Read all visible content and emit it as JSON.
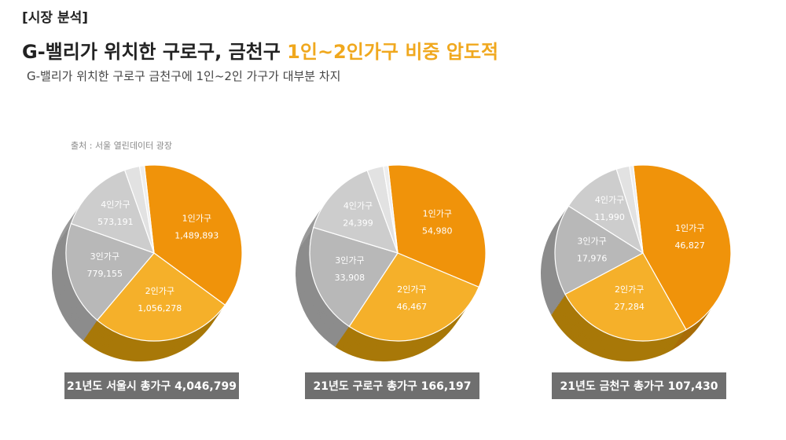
{
  "header": {
    "tag": "[시장 분석]",
    "title_main": "G-밸리가 위치한 구로구, 금천구 ",
    "title_highlight": "1인~2인가구 비중 압도적",
    "subtitle": "G-밸리가 위치한 구로구 금천구에 1인~2인 가구가 대부분 차지",
    "source": "출처 : 서울 열린데이터 광장"
  },
  "colors": {
    "one_person": "#f0930a",
    "two_person": "#f5b02a",
    "three_person": "#b8b8b8",
    "four_person": "#cdcdcd",
    "others_a": "#e2e2e2",
    "others_b": "#eeeeee",
    "highlight": "#f0a81e",
    "total_box": "#6f6f6f"
  },
  "chart_data": [
    {
      "type": "pie",
      "region": "서울시",
      "total_label": "21년도 서울시 총가구 4,046,799",
      "total": 4046799,
      "slices": [
        {
          "label": "1인가구",
          "value": 1489893,
          "value_label": "1,489,893"
        },
        {
          "label": "2인가구",
          "value": 1056278,
          "value_label": "1,056,278"
        },
        {
          "label": "3인가구",
          "value": 779155,
          "value_label": "779,155"
        },
        {
          "label": "4인가구",
          "value": 573191,
          "value_label": "573,191"
        },
        {
          "label": "",
          "value": 112000,
          "value_label": ""
        },
        {
          "label": "",
          "value": 36282,
          "value_label": ""
        }
      ]
    },
    {
      "type": "pie",
      "region": "구로구",
      "total_label": "21년도 구로구 총가구 166,197",
      "total": 166197,
      "slices": [
        {
          "label": "1인가구",
          "value": 54980,
          "value_label": "54,980"
        },
        {
          "label": "2인가구",
          "value": 46467,
          "value_label": "46,467"
        },
        {
          "label": "3인가구",
          "value": 33908,
          "value_label": "33,908"
        },
        {
          "label": "4인가구",
          "value": 24399,
          "value_label": "24,399"
        },
        {
          "label": "",
          "value": 5000,
          "value_label": ""
        },
        {
          "label": "",
          "value": 1443,
          "value_label": ""
        }
      ]
    },
    {
      "type": "pie",
      "region": "금천구",
      "total_label": "21년도 금천구 총가구 107,430",
      "total": 107430,
      "slices": [
        {
          "label": "1인가구",
          "value": 46827,
          "value_label": "46,827"
        },
        {
          "label": "2인가구",
          "value": 27284,
          "value_label": "27,284"
        },
        {
          "label": "3인가구",
          "value": 17976,
          "value_label": "17,976"
        },
        {
          "label": "4인가구",
          "value": 11990,
          "value_label": "11,990"
        },
        {
          "label": "",
          "value": 2600,
          "value_label": ""
        },
        {
          "label": "",
          "value": 753,
          "value_label": ""
        }
      ]
    }
  ]
}
